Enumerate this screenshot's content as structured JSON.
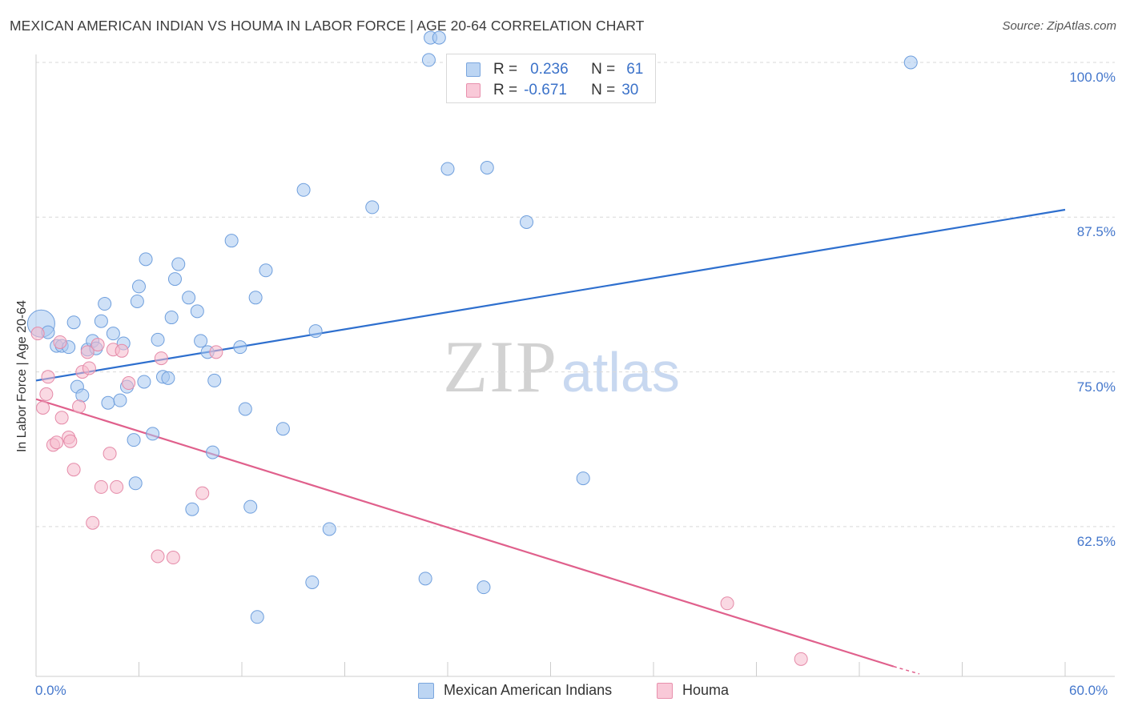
{
  "header": {
    "title": "MEXICAN AMERICAN INDIAN VS HOUMA IN LABOR FORCE | AGE 20-64 CORRELATION CHART",
    "source": "Source: ZipAtlas.com"
  },
  "watermark": {
    "zip": "ZIP",
    "atlas": "atlas"
  },
  "legend": {
    "rows": [
      {
        "r_label": "R =",
        "r_value": "0.236",
        "n_label": "N =",
        "n_value": "61"
      },
      {
        "r_label": "R =",
        "r_value": "-0.671",
        "n_label": "N =",
        "n_value": "30"
      }
    ]
  },
  "colors": {
    "series1_fill": "#a8c8f0",
    "series1_stroke": "#6f9fdd",
    "series1_line": "#2e6fce",
    "series2_fill": "#f6b9cc",
    "series2_stroke": "#e58aa8",
    "series2_line": "#e0608c",
    "grid": "#d9d9d9",
    "axis_tick_text": "#4477cc"
  },
  "chart_data": {
    "type": "scatter",
    "title": "MEXICAN AMERICAN INDIAN VS HOUMA IN LABOR FORCE | AGE 20-64 CORRELATION CHART",
    "xlabel": "",
    "ylabel": "In Labor Force | Age 20-64",
    "xlim": [
      0,
      60
    ],
    "ylim": [
      51,
      102
    ],
    "x_ticks": [
      "0.0%",
      "60.0%"
    ],
    "y_ticks": [
      {
        "value": 62.5,
        "label": "62.5%"
      },
      {
        "value": 75.0,
        "label": "75.0%"
      },
      {
        "value": 87.5,
        "label": "87.5%"
      },
      {
        "value": 100.0,
        "label": "100.0%"
      }
    ],
    "grid": true,
    "legend_position": "bottom-center",
    "series": [
      {
        "name": "Mexican American Indians",
        "r": 0.236,
        "n": 61,
        "trend": {
          "x": [
            0,
            60
          ],
          "y": [
            74.3,
            88.1
          ]
        },
        "points": [
          [
            0.3,
            78.9
          ],
          [
            0.7,
            78.2
          ],
          [
            1.2,
            77.1
          ],
          [
            1.5,
            77.1
          ],
          [
            1.9,
            77.0
          ],
          [
            2.2,
            79.0
          ],
          [
            2.4,
            73.8
          ],
          [
            2.7,
            73.1
          ],
          [
            3.0,
            76.8
          ],
          [
            3.3,
            77.5
          ],
          [
            3.5,
            76.9
          ],
          [
            3.8,
            79.1
          ],
          [
            4.0,
            80.5
          ],
          [
            4.2,
            72.5
          ],
          [
            4.5,
            78.1
          ],
          [
            4.9,
            72.7
          ],
          [
            5.1,
            77.3
          ],
          [
            5.3,
            73.8
          ],
          [
            5.7,
            69.5
          ],
          [
            5.8,
            66.0
          ],
          [
            5.9,
            80.7
          ],
          [
            6.0,
            81.9
          ],
          [
            6.3,
            74.2
          ],
          [
            6.4,
            84.1
          ],
          [
            6.8,
            70.0
          ],
          [
            7.1,
            77.6
          ],
          [
            7.4,
            74.6
          ],
          [
            7.7,
            74.5
          ],
          [
            7.9,
            79.4
          ],
          [
            8.1,
            82.5
          ],
          [
            8.3,
            83.7
          ],
          [
            8.9,
            81.0
          ],
          [
            9.1,
            63.9
          ],
          [
            9.4,
            79.9
          ],
          [
            9.6,
            77.5
          ],
          [
            10.0,
            76.6
          ],
          [
            10.3,
            68.5
          ],
          [
            10.4,
            74.3
          ],
          [
            11.4,
            85.6
          ],
          [
            11.9,
            77.0
          ],
          [
            12.2,
            72.0
          ],
          [
            12.5,
            64.1
          ],
          [
            12.8,
            81.0
          ],
          [
            12.9,
            55.2
          ],
          [
            13.4,
            83.2
          ],
          [
            14.4,
            70.4
          ],
          [
            15.6,
            89.7
          ],
          [
            16.1,
            58.0
          ],
          [
            16.3,
            78.3
          ],
          [
            17.1,
            62.3
          ],
          [
            19.6,
            88.3
          ],
          [
            22.7,
            58.3
          ],
          [
            22.9,
            100.2
          ],
          [
            24.0,
            91.4
          ],
          [
            26.1,
            57.6
          ],
          [
            26.3,
            91.5
          ],
          [
            28.6,
            87.1
          ],
          [
            31.9,
            66.4
          ],
          [
            51.0,
            100.0
          ],
          [
            23.0,
            102.0
          ],
          [
            23.5,
            102.0
          ]
        ]
      },
      {
        "name": "Houma",
        "r": -0.671,
        "n": 30,
        "trend": {
          "x": [
            0,
            50
          ],
          "y": [
            72.8,
            51.2
          ],
          "dashed_ext": {
            "x": [
              50,
              51.5
            ],
            "y": [
              51.2,
              50.6
            ]
          }
        },
        "points": [
          [
            0.1,
            78.1
          ],
          [
            0.4,
            72.1
          ],
          [
            0.6,
            73.2
          ],
          [
            0.7,
            74.6
          ],
          [
            1.0,
            69.1
          ],
          [
            1.2,
            69.3
          ],
          [
            1.4,
            77.4
          ],
          [
            1.5,
            71.3
          ],
          [
            1.9,
            69.7
          ],
          [
            2.0,
            69.4
          ],
          [
            2.2,
            67.1
          ],
          [
            2.5,
            72.2
          ],
          [
            2.7,
            75.0
          ],
          [
            3.0,
            76.6
          ],
          [
            3.1,
            75.3
          ],
          [
            3.3,
            62.8
          ],
          [
            3.6,
            77.2
          ],
          [
            3.8,
            65.7
          ],
          [
            4.3,
            68.4
          ],
          [
            4.5,
            76.8
          ],
          [
            4.7,
            65.7
          ],
          [
            5.0,
            76.7
          ],
          [
            5.4,
            74.1
          ],
          [
            7.1,
            60.1
          ],
          [
            7.3,
            76.1
          ],
          [
            8.0,
            60.0
          ],
          [
            9.7,
            65.2
          ],
          [
            10.5,
            76.6
          ],
          [
            40.3,
            56.3
          ],
          [
            44.6,
            51.8
          ]
        ]
      }
    ]
  },
  "bottom_legend": [
    "Mexican American Indians",
    "Houma"
  ]
}
